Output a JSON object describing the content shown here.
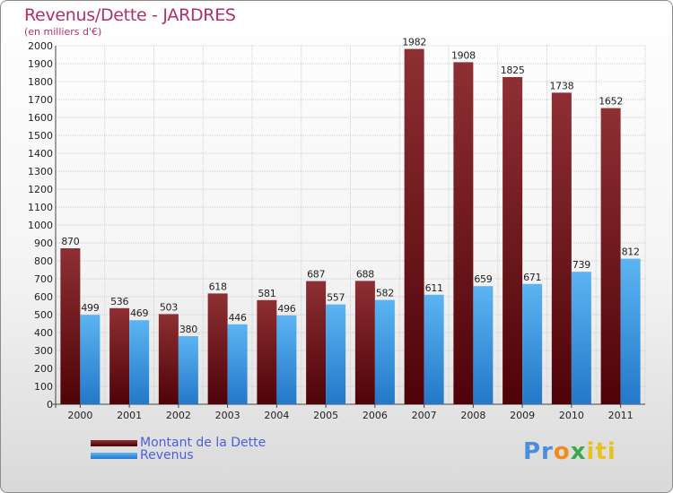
{
  "title": "Revenus/Dette - JARDRES",
  "subtitle": "(en milliers d'€)",
  "logo": {
    "parts": [
      "Pr",
      "o",
      "x",
      "iti"
    ]
  },
  "colors": {
    "debt": "#7a1f26",
    "revenue": "#3d9ae6",
    "title": "#b0306a",
    "legend_text": "#4a5fd8"
  },
  "chart_data": {
    "type": "bar",
    "title": "Revenus/Dette - JARDRES",
    "subtitle": "(en milliers d'€)",
    "categories": [
      "2000",
      "2001",
      "2002",
      "2003",
      "2004",
      "2005",
      "2006",
      "2007",
      "2008",
      "2009",
      "2010",
      "2011"
    ],
    "series": [
      {
        "name": "Montant de la Dette",
        "values": [
          870,
          536,
          503,
          618,
          581,
          687,
          688,
          1982,
          1908,
          1825,
          1738,
          1652
        ]
      },
      {
        "name": "Revenus",
        "values": [
          499,
          469,
          380,
          446,
          496,
          557,
          582,
          611,
          659,
          671,
          739,
          812
        ]
      }
    ],
    "ylim": [
      0,
      2000
    ],
    "yticks": [
      0,
      100,
      200,
      300,
      400,
      500,
      600,
      700,
      800,
      900,
      1000,
      1100,
      1200,
      1300,
      1400,
      1500,
      1600,
      1700,
      1800,
      1900,
      2000
    ],
    "grid": true,
    "legend": "bottom-left"
  }
}
